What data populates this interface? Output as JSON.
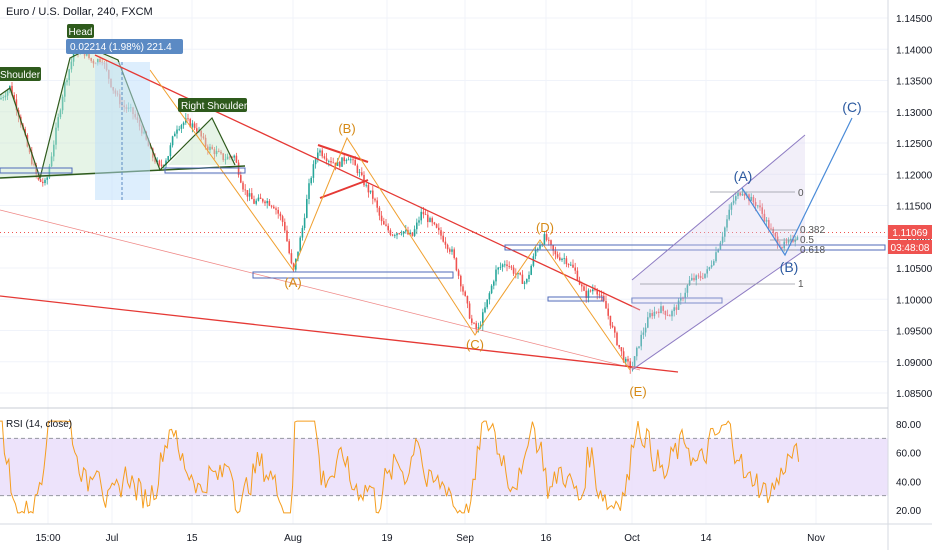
{
  "chart_data": {
    "type": "candlestick",
    "symbol_title": "Euro / U.S. Dollar, 240, FXCM",
    "price_axis": {
      "ticks": [
        1.145,
        1.14,
        1.135,
        1.13,
        1.125,
        1.12,
        1.115,
        1.11,
        1.105,
        1.1,
        1.095,
        1.09,
        1.085
      ],
      "tick_labels": [
        "1.14500",
        "1.14000",
        "1.13500",
        "1.13000",
        "1.12500",
        "1.12000",
        "1.11500",
        "1.11000",
        "1.10500",
        "1.10000",
        "1.09500",
        "1.09000",
        "1.08500"
      ],
      "range": [
        1.0835,
        1.1475
      ],
      "last_price": 1.11069,
      "last_price_label": "1.11069",
      "countdown_label": "03:48:08"
    },
    "time_axis": {
      "labels": [
        "15:00",
        "Jul",
        "15",
        "Aug",
        "19",
        "Sep",
        "16",
        "Oct",
        "14",
        "Nov"
      ]
    },
    "rsi": {
      "title": "RSI (14, close)",
      "ticks": [
        80,
        60,
        40,
        20
      ],
      "tick_labels": [
        "80.00",
        "60.00",
        "40.00",
        "20.00"
      ],
      "band": [
        30,
        70
      ],
      "range": [
        12,
        90
      ]
    },
    "annotations": {
      "head_label": "Head",
      "measure_label": "0.02214 (1.98%) 221.4",
      "left_shoulder_label": "Shoulder",
      "right_shoulder_label": "Right Shoulder",
      "wave_labels": [
        "(A)",
        "(B)",
        "(C)",
        "(D)",
        "(E)",
        "(A)",
        "(B)",
        "(C)"
      ],
      "fib_levels": [
        "0",
        "0.382",
        "0.5",
        "0.618",
        "1"
      ]
    },
    "colors": {
      "up": "#26a69a",
      "down": "#ef5350",
      "trendline": "#e53935",
      "elliott": "#f0a030",
      "wave_blue": "#2c5aa0",
      "rsi_line": "#f59d1e",
      "rsi_band": "#e9dcfa",
      "shoulder_green": "#2e5a1c"
    }
  }
}
